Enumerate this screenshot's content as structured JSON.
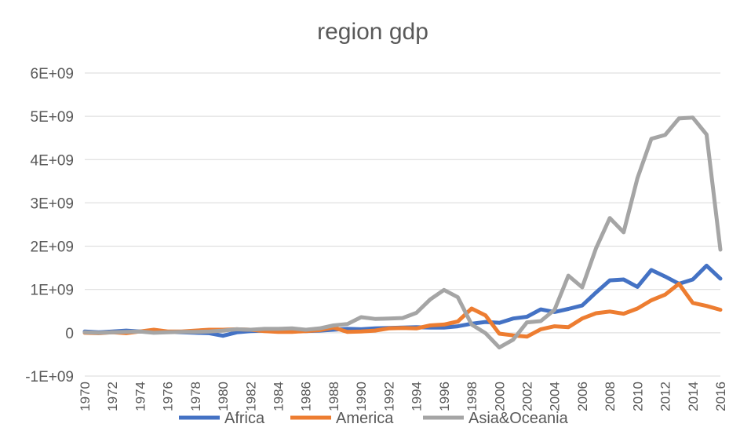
{
  "chart_data": {
    "type": "line",
    "title": "region gdp",
    "xlabel": "",
    "ylabel": "",
    "ylim": [
      -1000000000,
      6000000000
    ],
    "yticks": [
      {
        "value": 6000000000,
        "label": "6E+09"
      },
      {
        "value": 5000000000,
        "label": "5E+09"
      },
      {
        "value": 4000000000,
        "label": "4E+09"
      },
      {
        "value": 3000000000,
        "label": "3E+09"
      },
      {
        "value": 2000000000,
        "label": "2E+09"
      },
      {
        "value": 1000000000,
        "label": "1E+09"
      },
      {
        "value": 0,
        "label": "0"
      },
      {
        "value": -1000000000,
        "label": "-1E+09"
      }
    ],
    "xtick_labels": [
      "1970",
      "1972",
      "1974",
      "1976",
      "1978",
      "1980",
      "1982",
      "1984",
      "1986",
      "1988",
      "1990",
      "1992",
      "1994",
      "1996",
      "1998",
      "2000",
      "2002",
      "2004",
      "2006",
      "2008",
      "2010",
      "2012",
      "2014",
      "2016"
    ],
    "x": [
      1970,
      1971,
      1972,
      1973,
      1974,
      1975,
      1976,
      1977,
      1978,
      1979,
      1980,
      1981,
      1982,
      1983,
      1984,
      1985,
      1986,
      1987,
      1988,
      1989,
      1990,
      1991,
      1992,
      1993,
      1994,
      1995,
      1996,
      1997,
      1998,
      1999,
      2000,
      2001,
      2002,
      2003,
      2004,
      2005,
      2006,
      2007,
      2008,
      2009,
      2010,
      2011,
      2012,
      2013,
      2014,
      2015,
      2016
    ],
    "grid": true,
    "legend_position": "bottom",
    "series": [
      {
        "name": "Africa",
        "color": "#4472c4",
        "values": [
          30000000,
          10000000,
          30000000,
          50000000,
          30000000,
          20000000,
          20000000,
          10000000,
          0,
          -10000000,
          -70000000,
          10000000,
          40000000,
          50000000,
          50000000,
          60000000,
          40000000,
          50000000,
          70000000,
          90000000,
          80000000,
          100000000,
          110000000,
          120000000,
          130000000,
          120000000,
          120000000,
          150000000,
          210000000,
          250000000,
          230000000,
          330000000,
          370000000,
          540000000,
          480000000,
          550000000,
          630000000,
          930000000,
          1210000000,
          1230000000,
          1060000000,
          1450000000,
          1300000000,
          1130000000,
          1230000000,
          1550000000,
          1250000000
        ]
      },
      {
        "name": "America",
        "color": "#ed7d31",
        "values": [
          0,
          -10000000,
          10000000,
          -10000000,
          30000000,
          70000000,
          30000000,
          30000000,
          50000000,
          70000000,
          70000000,
          80000000,
          70000000,
          40000000,
          20000000,
          20000000,
          40000000,
          60000000,
          120000000,
          20000000,
          30000000,
          50000000,
          100000000,
          110000000,
          100000000,
          170000000,
          190000000,
          260000000,
          560000000,
          400000000,
          -20000000,
          -60000000,
          -90000000,
          80000000,
          150000000,
          130000000,
          330000000,
          450000000,
          490000000,
          440000000,
          560000000,
          750000000,
          880000000,
          1130000000,
          690000000,
          620000000,
          530000000
        ]
      },
      {
        "name": "Asia&Oceania",
        "color": "#a5a5a5",
        "values": [
          10000000,
          0,
          10000000,
          20000000,
          30000000,
          0,
          10000000,
          20000000,
          20000000,
          30000000,
          50000000,
          80000000,
          70000000,
          90000000,
          90000000,
          100000000,
          70000000,
          100000000,
          170000000,
          200000000,
          360000000,
          320000000,
          330000000,
          340000000,
          460000000,
          770000000,
          990000000,
          820000000,
          190000000,
          -10000000,
          -340000000,
          -160000000,
          240000000,
          270000000,
          530000000,
          1320000000,
          1050000000,
          1950000000,
          2650000000,
          2320000000,
          3570000000,
          4480000000,
          4570000000,
          4950000000,
          4970000000,
          4580000000,
          1920000000
        ]
      }
    ]
  }
}
